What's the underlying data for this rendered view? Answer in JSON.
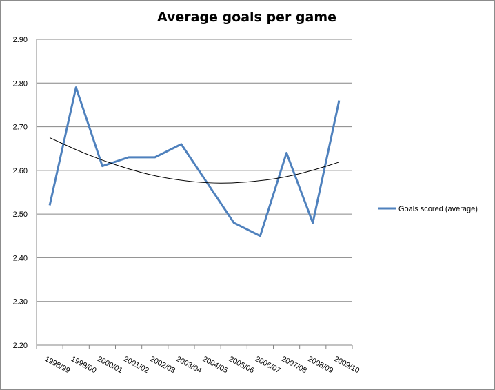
{
  "chart_data": {
    "type": "line",
    "title": "Average goals per game",
    "categories": [
      "1998/99",
      "1999/00",
      "2000/01",
      "2001/02",
      "2002/03",
      "2003/04",
      "2004/05",
      "2005/06",
      "2006/07",
      "2007/08",
      "2008/09",
      "2009/10"
    ],
    "series": [
      {
        "name": "Goals scored (average)",
        "values": [
          2.52,
          2.79,
          2.61,
          2.63,
          2.63,
          2.66,
          2.57,
          2.48,
          2.45,
          2.64,
          2.48,
          2.76
        ],
        "color": "#4f81bd"
      }
    ],
    "trendline": {
      "type": "polynomial",
      "color": "#000000",
      "values": [
        2.675,
        2.647,
        2.623,
        2.603,
        2.587,
        2.577,
        2.571,
        2.571,
        2.576,
        2.585,
        2.6,
        2.619
      ]
    },
    "yticks": [
      "2.20",
      "2.30",
      "2.40",
      "2.50",
      "2.60",
      "2.70",
      "2.80",
      "2.90"
    ],
    "ylim": [
      2.2,
      2.9
    ],
    "grid": true,
    "legend_position": "right"
  }
}
